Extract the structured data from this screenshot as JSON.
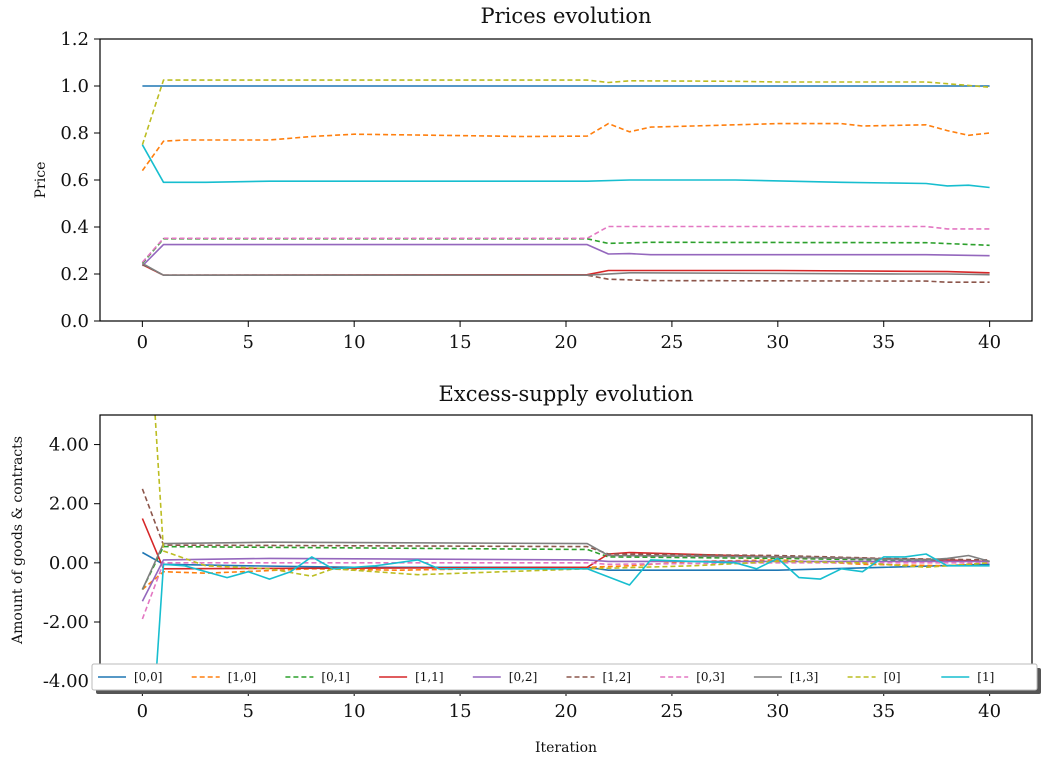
{
  "chart_data": [
    {
      "type": "line",
      "title": "Prices evolution",
      "xlabel": "",
      "ylabel": "Price",
      "xlim": [
        -2,
        42
      ],
      "ylim": [
        0.0,
        1.2
      ],
      "xticks": [
        "0",
        "5",
        "10",
        "15",
        "20",
        "25",
        "30",
        "35",
        "40"
      ],
      "yticks": [
        "0.0",
        "0.2",
        "0.4",
        "0.6",
        "0.8",
        "1.0",
        "1.2"
      ],
      "grid": false,
      "series": [
        {
          "key": "p00",
          "color": "#1f77b4",
          "dashed": false,
          "points": [
            [
              0,
              1.0
            ],
            [
              40,
              1.0
            ]
          ]
        },
        {
          "key": "p10",
          "color": "#ff7f0e",
          "dashed": true,
          "points": [
            [
              0,
              0.64
            ],
            [
              1,
              0.765
            ],
            [
              2,
              0.77
            ],
            [
              6,
              0.77
            ],
            [
              8,
              0.785
            ],
            [
              10,
              0.795
            ],
            [
              14,
              0.79
            ],
            [
              18,
              0.785
            ],
            [
              21,
              0.787
            ],
            [
              22,
              0.84
            ],
            [
              23,
              0.805
            ],
            [
              24,
              0.825
            ],
            [
              26,
              0.83
            ],
            [
              30,
              0.84
            ],
            [
              33,
              0.84
            ],
            [
              34,
              0.83
            ],
            [
              37,
              0.835
            ],
            [
              38,
              0.81
            ],
            [
              39,
              0.79
            ],
            [
              40,
              0.8
            ]
          ]
        },
        {
          "key": "p01",
          "color": "#2ca02c",
          "dashed": true,
          "points": [
            [
              0,
              0.245
            ],
            [
              1,
              0.35
            ],
            [
              21,
              0.35
            ],
            [
              22,
              0.33
            ],
            [
              24,
              0.335
            ],
            [
              37,
              0.333
            ],
            [
              40,
              0.322
            ]
          ]
        },
        {
          "key": "p11",
          "color": "#d62728",
          "dashed": false,
          "points": [
            [
              0,
              0.24
            ],
            [
              1,
              0.195
            ],
            [
              21,
              0.197
            ],
            [
              22,
              0.215
            ],
            [
              30,
              0.215
            ],
            [
              38,
              0.21
            ],
            [
              40,
              0.205
            ]
          ]
        },
        {
          "key": "p02",
          "color": "#9467bd",
          "dashed": false,
          "points": [
            [
              0,
              0.235
            ],
            [
              1,
              0.325
            ],
            [
              21,
              0.325
            ],
            [
              22,
              0.285
            ],
            [
              23,
              0.287
            ],
            [
              24,
              0.282
            ],
            [
              37,
              0.282
            ],
            [
              40,
              0.278
            ]
          ]
        },
        {
          "key": "p12",
          "color": "#8c564b",
          "dashed": true,
          "points": [
            [
              0,
              0.24
            ],
            [
              1,
              0.195
            ],
            [
              21,
              0.195
            ],
            [
              22,
              0.178
            ],
            [
              24,
              0.172
            ],
            [
              37,
              0.17
            ],
            [
              38,
              0.165
            ],
            [
              40,
              0.165
            ]
          ]
        },
        {
          "key": "p03",
          "color": "#e377c2",
          "dashed": true,
          "points": [
            [
              0,
              0.25
            ],
            [
              1,
              0.352
            ],
            [
              21,
              0.352
            ],
            [
              22,
              0.402
            ],
            [
              37,
              0.402
            ],
            [
              38,
              0.392
            ],
            [
              40,
              0.392
            ]
          ]
        },
        {
          "key": "p13",
          "color": "#7f7f7f",
          "dashed": false,
          "points": [
            [
              0,
              0.245
            ],
            [
              1,
              0.195
            ],
            [
              21,
              0.195
            ],
            [
              23,
              0.205
            ],
            [
              36,
              0.2
            ],
            [
              38,
              0.2
            ],
            [
              40,
              0.197
            ]
          ]
        },
        {
          "key": "p0",
          "color": "#bcbd22",
          "dashed": true,
          "points": [
            [
              0,
              0.75
            ],
            [
              1,
              1.025
            ],
            [
              21,
              1.025
            ],
            [
              22,
              1.015
            ],
            [
              23,
              1.022
            ],
            [
              28,
              1.02
            ],
            [
              30,
              1.017
            ],
            [
              37,
              1.017
            ],
            [
              38,
              1.01
            ],
            [
              40,
              0.995
            ]
          ]
        },
        {
          "key": "p1",
          "color": "#17becf",
          "dashed": false,
          "points": [
            [
              0,
              0.75
            ],
            [
              1,
              0.59
            ],
            [
              3,
              0.59
            ],
            [
              6,
              0.595
            ],
            [
              21,
              0.595
            ],
            [
              23,
              0.6
            ],
            [
              28,
              0.6
            ],
            [
              33,
              0.59
            ],
            [
              37,
              0.585
            ],
            [
              38,
              0.575
            ],
            [
              39,
              0.578
            ],
            [
              40,
              0.568
            ]
          ]
        }
      ]
    },
    {
      "type": "line",
      "title": "Excess-supply evolution",
      "xlabel": "Iteration",
      "ylabel": "Amount of goods & contracts",
      "xlim": [
        -2,
        42
      ],
      "ylim": [
        -4.3,
        5.0
      ],
      "xticks": [
        "0",
        "5",
        "10",
        "15",
        "20",
        "25",
        "30",
        "35",
        "40"
      ],
      "yticks": [
        "-4.00",
        "-2.00",
        "0.00",
        "2.00",
        "4.00"
      ],
      "grid": false,
      "legend": {
        "placement": "bottom",
        "columns": 10,
        "labels": [
          "[0,0]",
          "[1,0]",
          "[0,1]",
          "[1,1]",
          "[0,2]",
          "[1,2]",
          "[0,3]",
          "[1,3]",
          "[0]",
          "[1]"
        ]
      },
      "series": [
        {
          "name": "[0,0]",
          "color": "#1f77b4",
          "dashed": false,
          "points": [
            [
              0,
              0.35
            ],
            [
              1,
              -0.05
            ],
            [
              5,
              -0.1
            ],
            [
              10,
              -0.15
            ],
            [
              21,
              -0.15
            ],
            [
              22,
              -0.25
            ],
            [
              30,
              -0.25
            ],
            [
              35,
              -0.15
            ],
            [
              40,
              -0.05
            ]
          ]
        },
        {
          "name": "[1,0]",
          "color": "#ff7f0e",
          "dashed": true,
          "points": [
            [
              0,
              -0.9
            ],
            [
              1,
              -0.3
            ],
            [
              3,
              -0.35
            ],
            [
              8,
              -0.2
            ],
            [
              12,
              -0.25
            ],
            [
              16,
              -0.2
            ],
            [
              21,
              -0.15
            ],
            [
              23,
              -0.1
            ],
            [
              26,
              0.05
            ],
            [
              30,
              0.1
            ],
            [
              34,
              -0.05
            ],
            [
              38,
              -0.1
            ],
            [
              40,
              0.0
            ]
          ]
        },
        {
          "name": "[0,1]",
          "color": "#2ca02c",
          "dashed": true,
          "points": [
            [
              0,
              -0.9
            ],
            [
              1,
              0.55
            ],
            [
              21,
              0.45
            ],
            [
              22,
              0.2
            ],
            [
              30,
              0.15
            ],
            [
              40,
              0.05
            ]
          ]
        },
        {
          "name": "[1,1]",
          "color": "#d62728",
          "dashed": false,
          "points": [
            [
              0,
              1.5
            ],
            [
              1,
              -0.2
            ],
            [
              21,
              -0.15
            ],
            [
              22,
              0.3
            ],
            [
              23,
              0.35
            ],
            [
              30,
              0.2
            ],
            [
              38,
              0.1
            ],
            [
              40,
              0.05
            ]
          ]
        },
        {
          "name": "[0,2]",
          "color": "#9467bd",
          "dashed": false,
          "points": [
            [
              0,
              -1.3
            ],
            [
              1,
              0.1
            ],
            [
              6,
              0.15
            ],
            [
              21,
              0.1
            ],
            [
              22,
              0.05
            ],
            [
              30,
              0.05
            ],
            [
              40,
              0.05
            ]
          ]
        },
        {
          "name": "[1,2]",
          "color": "#8c564b",
          "dashed": true,
          "points": [
            [
              0,
              2.5
            ],
            [
              1,
              0.6
            ],
            [
              21,
              0.55
            ],
            [
              22,
              0.3
            ],
            [
              30,
              0.25
            ],
            [
              35,
              0.15
            ],
            [
              40,
              0.1
            ]
          ]
        },
        {
          "name": "[0,3]",
          "color": "#e377c2",
          "dashed": true,
          "points": [
            [
              0,
              -1.9
            ],
            [
              1,
              0.0
            ],
            [
              21,
              0.0
            ],
            [
              22,
              -0.05
            ],
            [
              30,
              0.0
            ],
            [
              40,
              0.0
            ]
          ]
        },
        {
          "name": "[1,3]",
          "color": "#7f7f7f",
          "dashed": false,
          "points": [
            [
              0,
              -0.9
            ],
            [
              1,
              0.65
            ],
            [
              6,
              0.7
            ],
            [
              21,
              0.65
            ],
            [
              22,
              0.25
            ],
            [
              30,
              0.2
            ],
            [
              37,
              0.1
            ],
            [
              38,
              0.15
            ],
            [
              39,
              0.25
            ],
            [
              40,
              0.05
            ]
          ]
        },
        {
          "name": "[0]",
          "color": "#bcbd22",
          "dashed": true,
          "points": [
            [
              0.6,
              5.0
            ],
            [
              1,
              0.4
            ],
            [
              3,
              -0.1
            ],
            [
              6,
              -0.2
            ],
            [
              8,
              -0.45
            ],
            [
              9,
              -0.2
            ],
            [
              13,
              -0.4
            ],
            [
              21,
              -0.2
            ],
            [
              26,
              -0.1
            ],
            [
              30,
              0.05
            ],
            [
              34,
              0.0
            ],
            [
              37,
              -0.15
            ],
            [
              40,
              0.0
            ]
          ]
        },
        {
          "name": "[1]",
          "color": "#17becf",
          "dashed": false,
          "points": [
            [
              0.6,
              -4.3
            ],
            [
              1,
              -0.05
            ],
            [
              2,
              -0.1
            ],
            [
              4,
              -0.5
            ],
            [
              5,
              -0.3
            ],
            [
              6,
              -0.55
            ],
            [
              7,
              -0.3
            ],
            [
              8,
              0.2
            ],
            [
              9,
              -0.2
            ],
            [
              11,
              -0.1
            ],
            [
              13,
              0.1
            ],
            [
              14,
              -0.2
            ],
            [
              16,
              -0.2
            ],
            [
              21,
              -0.2
            ],
            [
              23,
              -0.75
            ],
            [
              24,
              0.1
            ],
            [
              26,
              0.05
            ],
            [
              28,
              0.0
            ],
            [
              29,
              -0.2
            ],
            [
              30,
              0.15
            ],
            [
              31,
              -0.5
            ],
            [
              32,
              -0.55
            ],
            [
              33,
              -0.2
            ],
            [
              34,
              -0.3
            ],
            [
              35,
              0.2
            ],
            [
              36,
              0.2
            ],
            [
              37,
              0.3
            ],
            [
              38,
              -0.1
            ],
            [
              40,
              -0.1
            ]
          ]
        }
      ]
    }
  ]
}
